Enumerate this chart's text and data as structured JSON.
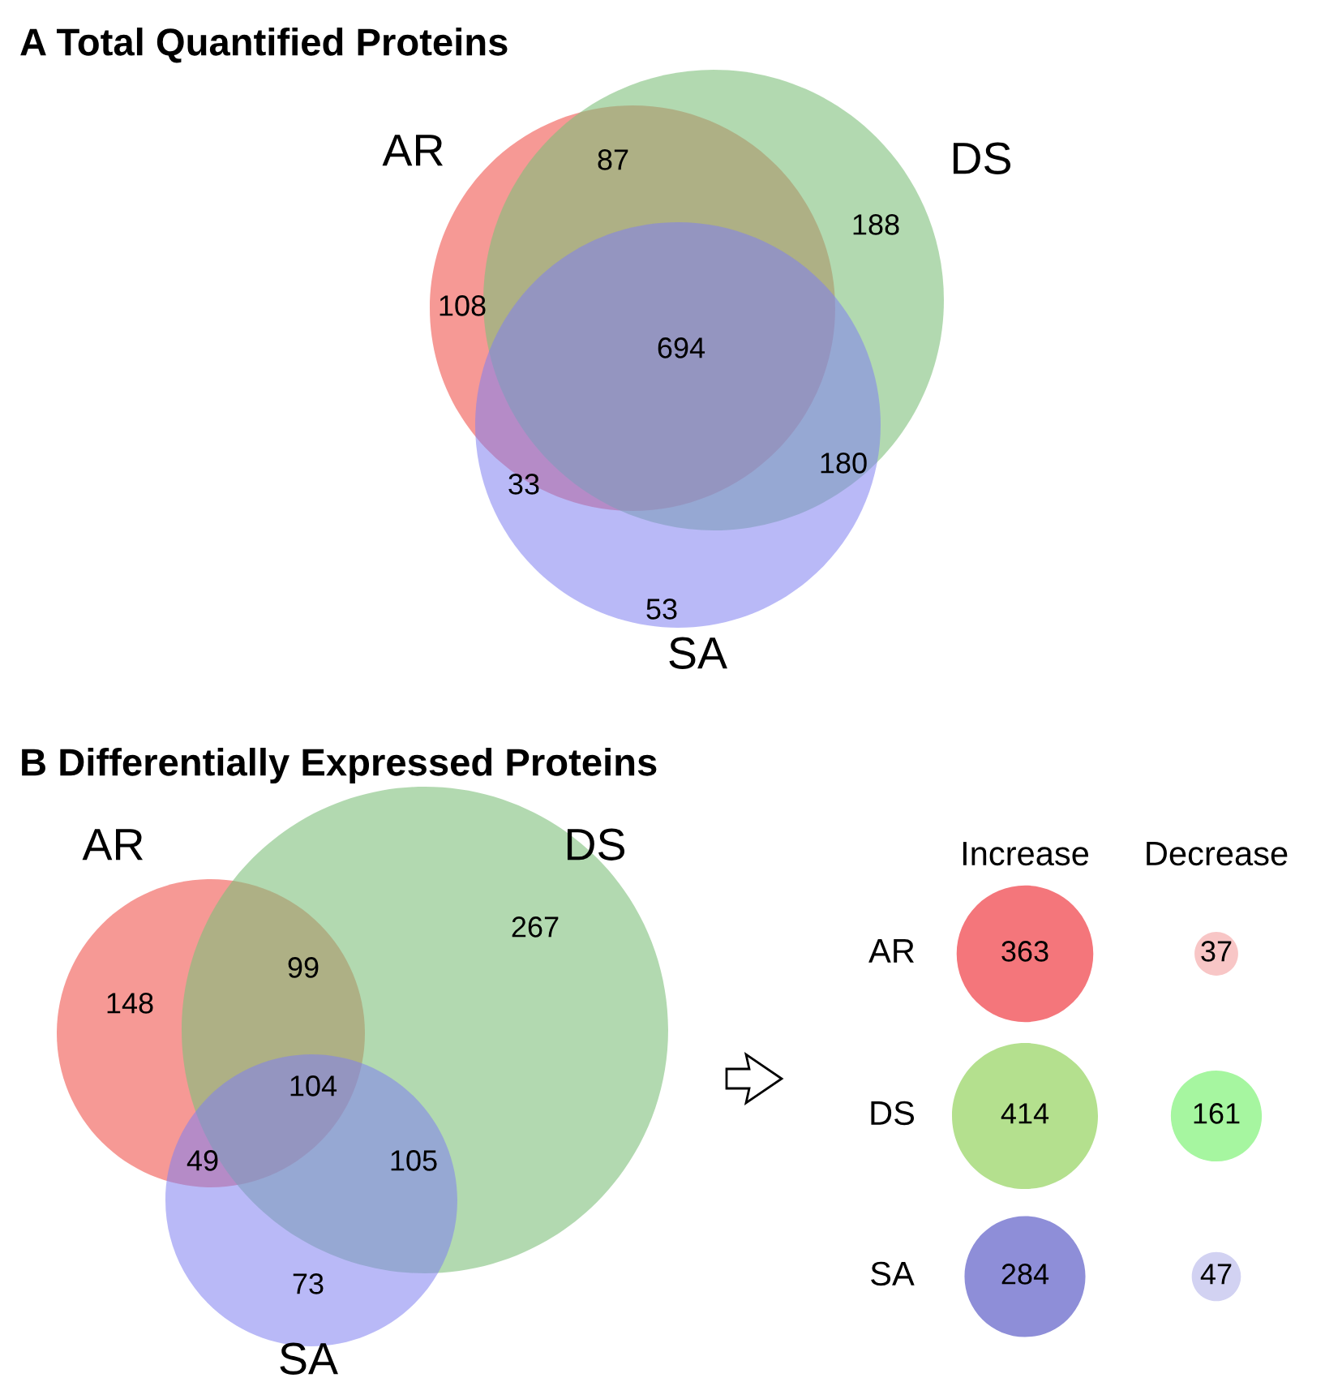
{
  "chart_data": [
    {
      "type": "other",
      "title": "A Total Quantified Proteins",
      "categories": [
        "AR",
        "DS",
        "SA"
      ],
      "colors": [
        "#f47f7a",
        "#7fbf7b",
        "#8080f0"
      ],
      "annotations": [
        "108",
        "87",
        "188",
        "694",
        "33",
        "180",
        "53"
      ]
    },
    {
      "type": "other",
      "title": "B Differentially Expressed Proteins",
      "categories": [
        "AR",
        "DS",
        "SA"
      ],
      "colors": [
        "#f47f7a",
        "#7fbf7b",
        "#8080f0"
      ],
      "annotations": [
        "148",
        "99",
        "267",
        "104",
        "49",
        "105",
        "73"
      ]
    },
    {
      "type": "other",
      "categories": [
        "Increase",
        "Decrease"
      ],
      "data_labels": true,
      "series": [
        {
          "name": "AR",
          "colors": [
            "#f4767b",
            "#f8c6c6"
          ],
          "values": [
            363,
            37
          ]
        },
        {
          "name": "DS",
          "colors": [
            "#b4e08e",
            "#a6f6a0"
          ],
          "values": [
            414,
            161
          ]
        },
        {
          "name": "SA",
          "colors": [
            "#8e8ed8",
            "#d2d2f2"
          ],
          "values": [
            284,
            47
          ]
        }
      ]
    }
  ]
}
